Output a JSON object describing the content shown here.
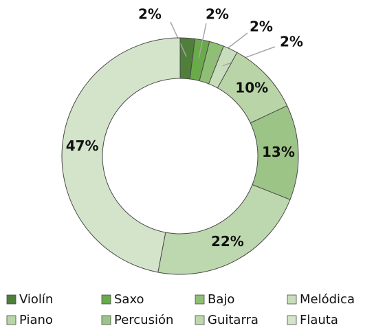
{
  "chart_data": {
    "type": "donut",
    "categories": [
      "Violín",
      "Saxo",
      "Bajo",
      "Melódica",
      "Piano",
      "Percusión",
      "Guitarra",
      "Flauta"
    ],
    "values": [
      2,
      2,
      2,
      2,
      10,
      13,
      22,
      47
    ],
    "value_labels": [
      "2%",
      "2%",
      "2%",
      "2%",
      "10%",
      "13%",
      "22%",
      "47%"
    ],
    "colors": [
      "#4f7f3b",
      "#6aaa4a",
      "#8fbf75",
      "#c8ddbb",
      "#b9d5a7",
      "#9dc487",
      "#bdd8ae",
      "#d4e4ca"
    ],
    "legend": "bottom"
  }
}
